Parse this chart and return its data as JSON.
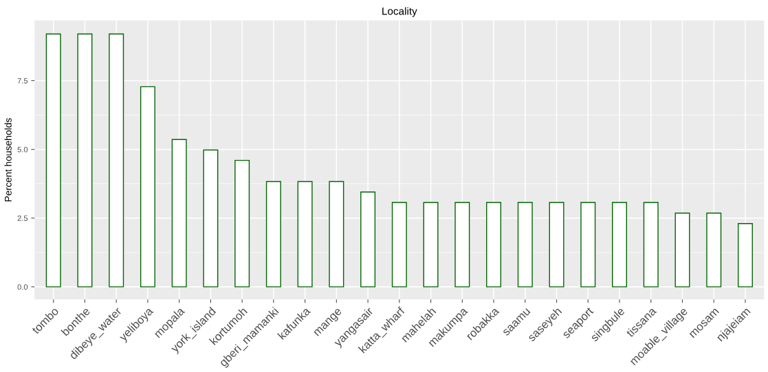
{
  "chart_data": {
    "type": "bar",
    "title": "Locality",
    "ylabel": "Percent households",
    "categories": [
      "tombo",
      "bonthe",
      "dibeye_water",
      "yeliboya",
      "mopala",
      "york_island",
      "kortumoh",
      "gberi_mamanki",
      "kafunka",
      "mange",
      "yangasair",
      "katta_wharf",
      "mahelah",
      "makumpa",
      "robakka",
      "saamu",
      "saseyeh",
      "seaport",
      "singbule",
      "tissana",
      "moable_village",
      "mosam",
      "njajeiam"
    ],
    "values": [
      9.2,
      9.2,
      9.2,
      7.28,
      5.36,
      4.98,
      4.6,
      3.83,
      3.83,
      3.83,
      3.45,
      3.07,
      3.07,
      3.07,
      3.07,
      3.07,
      3.07,
      3.07,
      3.07,
      3.07,
      2.68,
      2.68,
      2.3
    ],
    "color": "#006400",
    "ylim": [
      -0.46,
      9.69
    ],
    "yticks": [
      {
        "value": 0,
        "label": "0.0"
      },
      {
        "value": 2.5,
        "label": "2.5"
      },
      {
        "value": 5,
        "label": "5.0"
      },
      {
        "value": 7.5,
        "label": "7.5"
      }
    ],
    "grid": true
  }
}
